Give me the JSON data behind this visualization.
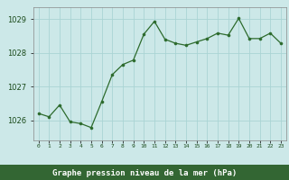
{
  "x": [
    0,
    1,
    2,
    3,
    4,
    5,
    6,
    7,
    8,
    9,
    10,
    11,
    12,
    13,
    14,
    15,
    16,
    17,
    18,
    19,
    20,
    21,
    22,
    23
  ],
  "y": [
    1026.2,
    1026.1,
    1026.45,
    1025.95,
    1025.9,
    1025.78,
    1026.55,
    1027.35,
    1027.65,
    1027.78,
    1028.55,
    1028.93,
    1028.4,
    1028.28,
    1028.22,
    1028.32,
    1028.42,
    1028.58,
    1028.52,
    1029.02,
    1028.42,
    1028.42,
    1028.58,
    1028.28
  ],
  "line_color": "#2d6b2d",
  "marker_color": "#2d6b2d",
  "bg_color": "#cce8e8",
  "grid_color": "#aad4d4",
  "bottom_bar_color": "#336633",
  "text_color_light": "#ccffcc",
  "tick_color": "#1a4a1a",
  "xlabel": "Graphe pression niveau de la mer (hPa)",
  "tick_labels": [
    "0",
    "1",
    "2",
    "3",
    "4",
    "5",
    "6",
    "7",
    "8",
    "9",
    "10",
    "11",
    "12",
    "13",
    "14",
    "15",
    "16",
    "17",
    "18",
    "19",
    "20",
    "21",
    "22",
    "23"
  ],
  "ylim": [
    1025.4,
    1029.35
  ],
  "yticks": [
    1026,
    1027,
    1028,
    1029
  ],
  "xlim": [
    -0.5,
    23.5
  ]
}
